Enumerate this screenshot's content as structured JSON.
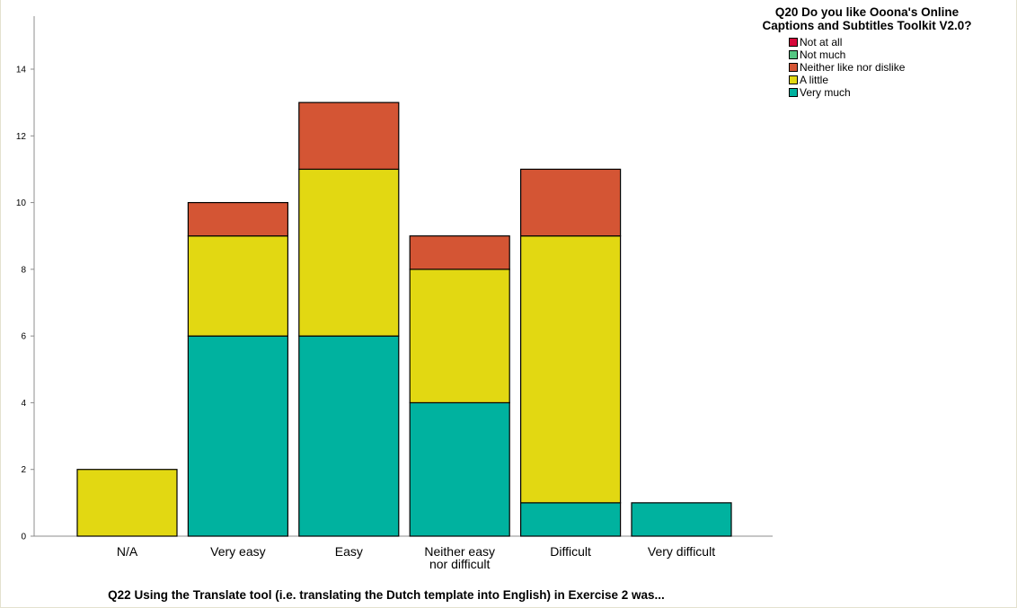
{
  "chart_data": {
    "type": "bar",
    "stacked": true,
    "title": "",
    "xlabel": "Q22 Using the Translate tool (i.e. translating the Dutch template into English) in Exercise 2 was...",
    "ylabel": "",
    "ylim": [
      0,
      15.5
    ],
    "yticks": [
      0,
      2,
      4,
      6,
      8,
      10,
      12,
      14
    ],
    "categories": [
      "N/A",
      "Very easy",
      "Easy",
      "Neither easy nor difficult",
      "Difficult",
      "Very difficult"
    ],
    "category_lines": [
      [
        "N/A"
      ],
      [
        "Very easy"
      ],
      [
        "Easy"
      ],
      [
        "Neither easy",
        "nor difficult"
      ],
      [
        "Difficult"
      ],
      [
        "Very difficult"
      ]
    ],
    "grid": false,
    "legend": {
      "title": "Q20 Do you like Ooona's Online Captions and Subtitles Toolkit V2.0?",
      "title_lines": [
        "Q20 Do you like Ooona's Online",
        "Captions and Subtitles Toolkit V2.0?"
      ],
      "position": "top-right"
    },
    "series": [
      {
        "name": "Very much",
        "color": "#00b29f",
        "values": [
          0,
          6,
          6,
          4,
          1,
          1
        ]
      },
      {
        "name": "A little",
        "color": "#e2d812",
        "values": [
          2,
          3,
          5,
          4,
          8,
          0
        ]
      },
      {
        "name": "Neither like nor dislike",
        "color": "#d45534",
        "values": [
          0,
          1,
          2,
          1,
          2,
          0
        ]
      },
      {
        "name": "Not much",
        "color": "#55c783",
        "values": [
          0,
          0,
          0,
          0,
          0,
          0
        ]
      },
      {
        "name": "Not at all",
        "color": "#d6083b",
        "values": [
          0,
          0,
          0,
          0,
          0,
          0
        ]
      }
    ],
    "legend_order": [
      "Not at all",
      "Not much",
      "Neither like nor dislike",
      "A little",
      "Very much"
    ]
  }
}
